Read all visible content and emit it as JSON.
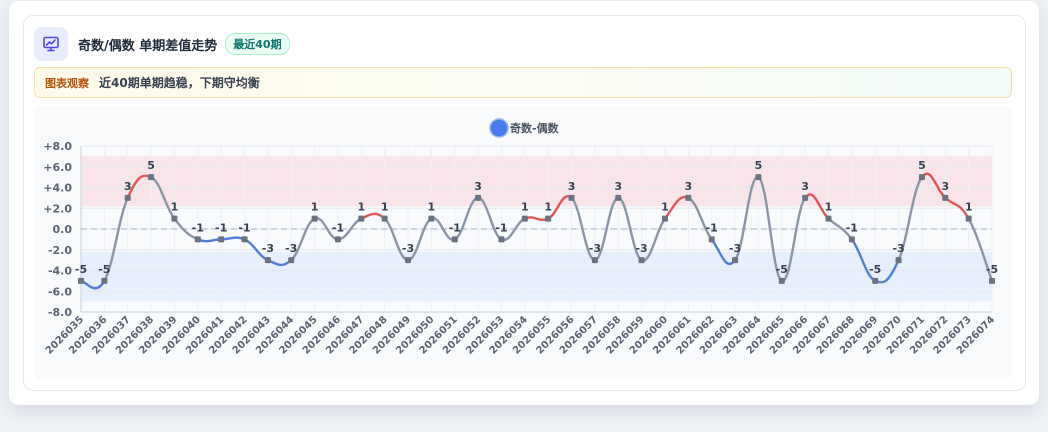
{
  "header": {
    "title": "奇数/偶数 单期差值走势",
    "badge": "最近40期"
  },
  "observation": {
    "tag": "图表观察",
    "text": "近40期单期趋稳，下期守均衡"
  },
  "colors": {
    "up": "#e05555",
    "down": "#4f7fd6",
    "flat": "#8a96a6",
    "marker": "#6b7280",
    "legend": "#4a7bee",
    "band_high": "#f9e1e5",
    "band_low": "#e4ebfb",
    "accent_icon": "#4f46e5"
  },
  "chart_data": {
    "type": "line",
    "legend": "奇数-偶数",
    "legend_position": "top-center",
    "x": [
      "2026035",
      "2026036",
      "2026037",
      "2026038",
      "2026039",
      "2026040",
      "2026041",
      "2026042",
      "2026043",
      "2026044",
      "2026045",
      "2026046",
      "2026047",
      "2026048",
      "2026049",
      "2026050",
      "2026051",
      "2026052",
      "2026053",
      "2026054",
      "2026055",
      "2026056",
      "2026057",
      "2026058",
      "2026059",
      "2026060",
      "2026061",
      "2026062",
      "2026063",
      "2026064",
      "2026065",
      "2026066",
      "2026067",
      "2026068",
      "2026069",
      "2026070",
      "2026071",
      "2026072",
      "2026073",
      "2026074"
    ],
    "series": [
      {
        "name": "奇数-偶数",
        "values": [
          -5,
          -5,
          3,
          5,
          1,
          -1,
          -1,
          -1,
          -3,
          -3,
          1,
          -1,
          1,
          1,
          -3,
          1,
          -1,
          3,
          -1,
          1,
          1,
          3,
          -3,
          3,
          -3,
          1,
          3,
          -1,
          -3,
          5,
          -5,
          3,
          1,
          -1,
          -5,
          -3,
          5,
          3,
          1,
          -5
        ]
      }
    ],
    "data_labels": [
      "-5",
      "-5",
      "3",
      "5",
      "1",
      "-1",
      "-1",
      "-1",
      "-3",
      "-3",
      "1",
      "-1",
      "1",
      "1",
      "-3",
      "1",
      "-1",
      "3",
      "-1",
      "1",
      "1",
      "3",
      "-3",
      "3",
      "-3",
      "1",
      "3",
      "-1",
      "-3",
      "5",
      "-5",
      "3",
      "1",
      "-1",
      "-5",
      "-3",
      "5",
      "3",
      "1",
      "-5"
    ],
    "ylim": [
      -8,
      8
    ],
    "yticks": [
      "+8.0",
      "+6.0",
      "+4.0",
      "+2.0",
      "0.0",
      "-2.0",
      "-4.0",
      "-6.0",
      "-8.0"
    ],
    "yticks_values": [
      8,
      6,
      4,
      2,
      0,
      -2,
      -4,
      -6,
      -8
    ],
    "bands": [
      {
        "from": 2.2,
        "to": 7
      },
      {
        "from": -7,
        "to": -2.2
      }
    ],
    "zero_line": "dashed",
    "grid": true
  }
}
